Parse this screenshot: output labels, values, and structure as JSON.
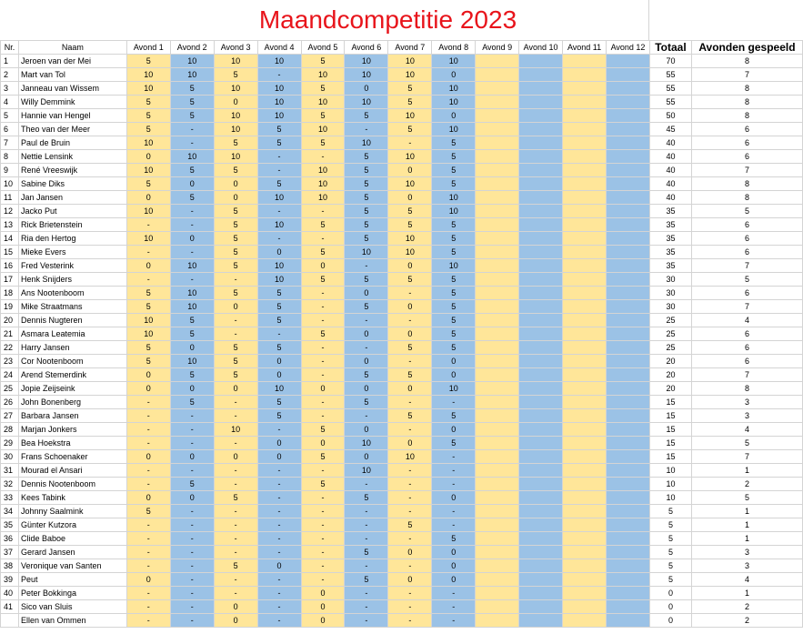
{
  "title": "Maandcompetitie 2023",
  "colors": {
    "title": "#e8141b",
    "odd_column": "#ffe699",
    "even_column": "#9bc2e6"
  },
  "headers": [
    "Nr.",
    "Naam",
    "Avond 1",
    "Avond 2",
    "Avond 3",
    "Avond 4",
    "Avond 5",
    "Avond 6",
    "Avond 7",
    "Avond 8",
    "Avond 9",
    "Avond 10",
    "Avond 11",
    "Avond 12",
    "Totaal",
    "Avonden gespeeld"
  ],
  "rows": [
    {
      "nr": "1",
      "name": "Jeroen van der Mei",
      "scores": [
        "5",
        "10",
        "10",
        "10",
        "5",
        "10",
        "10",
        "10",
        "",
        "",
        "",
        ""
      ],
      "total": "70",
      "played": "8"
    },
    {
      "nr": "2",
      "name": "Mart van Tol",
      "scores": [
        "10",
        "10",
        "5",
        "-",
        "10",
        "10",
        "10",
        "0",
        "",
        "",
        "",
        ""
      ],
      "total": "55",
      "played": "7"
    },
    {
      "nr": "3",
      "name": "Janneau van Wissem",
      "scores": [
        "10",
        "5",
        "10",
        "10",
        "5",
        "0",
        "5",
        "10",
        "",
        "",
        "",
        ""
      ],
      "total": "55",
      "played": "8"
    },
    {
      "nr": "4",
      "name": "Willy Demmink",
      "scores": [
        "5",
        "5",
        "0",
        "10",
        "10",
        "10",
        "5",
        "10",
        "",
        "",
        "",
        ""
      ],
      "total": "55",
      "played": "8"
    },
    {
      "nr": "5",
      "name": "Hannie van Hengel",
      "scores": [
        "5",
        "5",
        "10",
        "10",
        "5",
        "5",
        "10",
        "0",
        "",
        "",
        "",
        ""
      ],
      "total": "50",
      "played": "8"
    },
    {
      "nr": "6",
      "name": "Theo van der Meer",
      "scores": [
        "5",
        "-",
        "10",
        "5",
        "10",
        "-",
        "5",
        "10",
        "",
        "",
        "",
        ""
      ],
      "total": "45",
      "played": "6"
    },
    {
      "nr": "7",
      "name": "Paul de Bruin",
      "scores": [
        "10",
        "-",
        "5",
        "5",
        "5",
        "10",
        "-",
        "5",
        "",
        "",
        "",
        ""
      ],
      "total": "40",
      "played": "6"
    },
    {
      "nr": "8",
      "name": "Nettie Lensink",
      "scores": [
        "0",
        "10",
        "10",
        "-",
        "-",
        "5",
        "10",
        "5",
        "",
        "",
        "",
        ""
      ],
      "total": "40",
      "played": "6"
    },
    {
      "nr": "9",
      "name": "René Vreeswijk",
      "scores": [
        "10",
        "5",
        "5",
        "-",
        "10",
        "5",
        "0",
        "5",
        "",
        "",
        "",
        ""
      ],
      "total": "40",
      "played": "7"
    },
    {
      "nr": "10",
      "name": "Sabine Diks",
      "scores": [
        "5",
        "0",
        "0",
        "5",
        "10",
        "5",
        "10",
        "5",
        "",
        "",
        "",
        ""
      ],
      "total": "40",
      "played": "8"
    },
    {
      "nr": "11",
      "name": "Jan Jansen",
      "scores": [
        "0",
        "5",
        "0",
        "10",
        "10",
        "5",
        "0",
        "10",
        "",
        "",
        "",
        ""
      ],
      "total": "40",
      "played": "8"
    },
    {
      "nr": "12",
      "name": "Jacko Put",
      "scores": [
        "10",
        "-",
        "5",
        "-",
        "-",
        "5",
        "5",
        "10",
        "",
        "",
        "",
        ""
      ],
      "total": "35",
      "played": "5"
    },
    {
      "nr": "13",
      "name": "Rick Brietenstein",
      "scores": [
        "-",
        "-",
        "5",
        "10",
        "5",
        "5",
        "5",
        "5",
        "",
        "",
        "",
        ""
      ],
      "total": "35",
      "played": "6"
    },
    {
      "nr": "14",
      "name": "Ria den Hertog",
      "scores": [
        "10",
        "0",
        "5",
        "-",
        "-",
        "5",
        "10",
        "5",
        "",
        "",
        "",
        ""
      ],
      "total": "35",
      "played": "6"
    },
    {
      "nr": "15",
      "name": "Mieke Evers",
      "scores": [
        "-",
        "-",
        "5",
        "0",
        "5",
        "10",
        "10",
        "5",
        "",
        "",
        "",
        ""
      ],
      "total": "35",
      "played": "6"
    },
    {
      "nr": "16",
      "name": "Fred Vesterink",
      "scores": [
        "0",
        "10",
        "5",
        "10",
        "0",
        "-",
        "0",
        "10",
        "",
        "",
        "",
        ""
      ],
      "total": "35",
      "played": "7"
    },
    {
      "nr": "17",
      "name": "Henk Snijders",
      "scores": [
        "-",
        "-",
        "-",
        "10",
        "5",
        "5",
        "5",
        "5",
        "",
        "",
        "",
        ""
      ],
      "total": "30",
      "played": "5"
    },
    {
      "nr": "18",
      "name": "Ans Nootenboom",
      "scores": [
        "5",
        "10",
        "5",
        "5",
        "-",
        "0",
        "-",
        "5",
        "",
        "",
        "",
        ""
      ],
      "total": "30",
      "played": "6"
    },
    {
      "nr": "19",
      "name": "Mike Straatmans",
      "scores": [
        "5",
        "10",
        "0",
        "5",
        "-",
        "5",
        "0",
        "5",
        "",
        "",
        "",
        ""
      ],
      "total": "30",
      "played": "7"
    },
    {
      "nr": "20",
      "name": "Dennis Nugteren",
      "scores": [
        "10",
        "5",
        "-",
        "5",
        "-",
        "-",
        "-",
        "5",
        "",
        "",
        "",
        ""
      ],
      "total": "25",
      "played": "4"
    },
    {
      "nr": "21",
      "name": "Asmara Leatemia",
      "scores": [
        "10",
        "5",
        "-",
        "-",
        "5",
        "0",
        "0",
        "5",
        "",
        "",
        "",
        ""
      ],
      "total": "25",
      "played": "6"
    },
    {
      "nr": "22",
      "name": "Harry Jansen",
      "scores": [
        "5",
        "0",
        "5",
        "5",
        "-",
        "-",
        "5",
        "5",
        "",
        "",
        "",
        ""
      ],
      "total": "25",
      "played": "6"
    },
    {
      "nr": "23",
      "name": "Cor Nootenboom",
      "scores": [
        "5",
        "10",
        "5",
        "0",
        "-",
        "0",
        "-",
        "0",
        "",
        "",
        "",
        ""
      ],
      "total": "20",
      "played": "6"
    },
    {
      "nr": "24",
      "name": "Arend Stemerdink",
      "scores": [
        "0",
        "5",
        "5",
        "0",
        "-",
        "5",
        "5",
        "0",
        "",
        "",
        "",
        ""
      ],
      "total": "20",
      "played": "7"
    },
    {
      "nr": "25",
      "name": "Jopie Zeijseink",
      "scores": [
        "0",
        "0",
        "0",
        "10",
        "0",
        "0",
        "0",
        "10",
        "",
        "",
        "",
        ""
      ],
      "total": "20",
      "played": "8"
    },
    {
      "nr": "26",
      "name": "John Bonenberg",
      "scores": [
        "-",
        "5",
        "-",
        "5",
        "-",
        "5",
        "-",
        "-",
        "",
        "",
        "",
        ""
      ],
      "total": "15",
      "played": "3"
    },
    {
      "nr": "27",
      "name": "Barbara Jansen",
      "scores": [
        "-",
        "-",
        "-",
        "5",
        "-",
        "-",
        "5",
        "5",
        "",
        "",
        "",
        ""
      ],
      "total": "15",
      "played": "3"
    },
    {
      "nr": "28",
      "name": "Marjan Jonkers",
      "scores": [
        "-",
        "-",
        "10",
        "-",
        "5",
        "0",
        "-",
        "0",
        "",
        "",
        "",
        ""
      ],
      "total": "15",
      "played": "4"
    },
    {
      "nr": "29",
      "name": "Bea Hoekstra",
      "scores": [
        "-",
        "-",
        "-",
        "0",
        "0",
        "10",
        "0",
        "5",
        "",
        "",
        "",
        ""
      ],
      "total": "15",
      "played": "5"
    },
    {
      "nr": "30",
      "name": "Frans Schoenaker",
      "scores": [
        "0",
        "0",
        "0",
        "0",
        "5",
        "0",
        "10",
        "-",
        "",
        "",
        "",
        ""
      ],
      "total": "15",
      "played": "7"
    },
    {
      "nr": "31",
      "name": "Mourad el Ansari",
      "scores": [
        "-",
        "-",
        "-",
        "-",
        "-",
        "10",
        "-",
        "-",
        "",
        "",
        "",
        ""
      ],
      "total": "10",
      "played": "1"
    },
    {
      "nr": "32",
      "name": "Dennis Nootenboom",
      "scores": [
        "-",
        "5",
        "-",
        "-",
        "5",
        "-",
        "-",
        "-",
        "",
        "",
        "",
        ""
      ],
      "total": "10",
      "played": "2"
    },
    {
      "nr": "33",
      "name": "Kees Tabink",
      "scores": [
        "0",
        "0",
        "5",
        "-",
        "-",
        "5",
        "-",
        "0",
        "",
        "",
        "",
        ""
      ],
      "total": "10",
      "played": "5"
    },
    {
      "nr": "34",
      "name": "Johnny Saalmink",
      "scores": [
        "5",
        "-",
        "-",
        "-",
        "-",
        "-",
        "-",
        "-",
        "",
        "",
        "",
        ""
      ],
      "total": "5",
      "played": "1"
    },
    {
      "nr": "35",
      "name": "Günter Kutzora",
      "scores": [
        "-",
        "-",
        "-",
        "-",
        "-",
        "-",
        "5",
        "-",
        "",
        "",
        "",
        ""
      ],
      "total": "5",
      "played": "1"
    },
    {
      "nr": "36",
      "name": "Clide Baboe",
      "scores": [
        "-",
        "-",
        "-",
        "-",
        "-",
        "-",
        "-",
        "5",
        "",
        "",
        "",
        ""
      ],
      "total": "5",
      "played": "1"
    },
    {
      "nr": "37",
      "name": "Gerard Jansen",
      "scores": [
        "-",
        "-",
        "-",
        "-",
        "-",
        "5",
        "0",
        "0",
        "",
        "",
        "",
        ""
      ],
      "total": "5",
      "played": "3"
    },
    {
      "nr": "38",
      "name": "Veronique van Santen",
      "scores": [
        "-",
        "-",
        "5",
        "0",
        "-",
        "-",
        "-",
        "0",
        "",
        "",
        "",
        ""
      ],
      "total": "5",
      "played": "3"
    },
    {
      "nr": "39",
      "name": "Peut",
      "scores": [
        "0",
        "-",
        "-",
        "-",
        "-",
        "5",
        "0",
        "0",
        "",
        "",
        "",
        ""
      ],
      "total": "5",
      "played": "4"
    },
    {
      "nr": "40",
      "name": "Peter Bokkinga",
      "scores": [
        "-",
        "-",
        "-",
        "-",
        "0",
        "-",
        "-",
        "-",
        "",
        "",
        "",
        ""
      ],
      "total": "0",
      "played": "1"
    },
    {
      "nr": "41",
      "name": "Sico van Sluis",
      "scores": [
        "-",
        "-",
        "0",
        "-",
        "0",
        "-",
        "-",
        "-",
        "",
        "",
        "",
        ""
      ],
      "total": "0",
      "played": "2"
    },
    {
      "nr": "",
      "name": "Ellen van Ommen",
      "scores": [
        "-",
        "-",
        "0",
        "-",
        "0",
        "-",
        "-",
        "-",
        "",
        "",
        "",
        ""
      ],
      "total": "0",
      "played": "2"
    }
  ]
}
